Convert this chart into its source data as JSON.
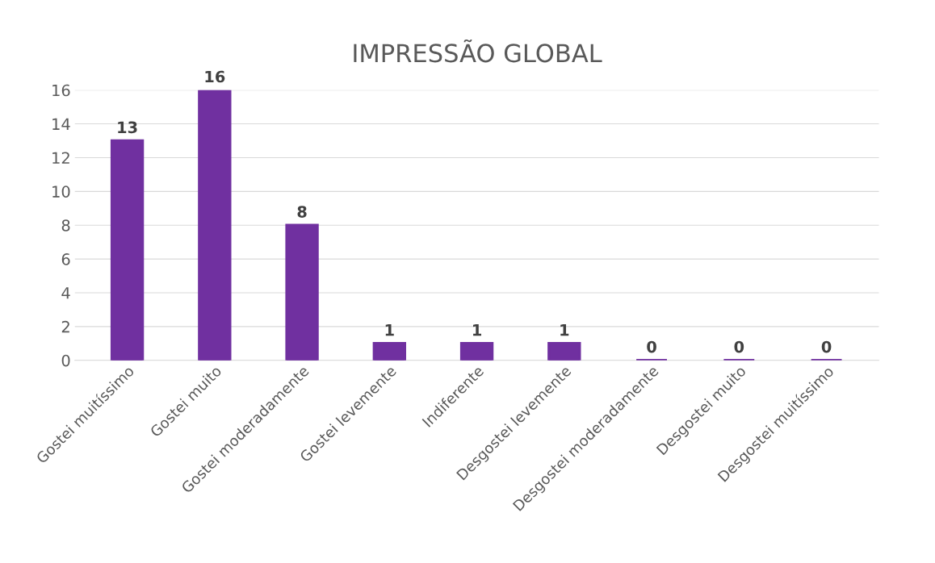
{
  "chart_data": {
    "type": "bar",
    "title": "IMPRESSÃO GLOBAL",
    "categories": [
      "Gostei muitíssimo",
      "Gostei muito",
      "Gostei moderadamente",
      "Gostei levemente",
      "Indiferente",
      "Desgostei levemente",
      "Desgostei moderadamente",
      "Desgostei muito",
      "Desgostei muitíssimo"
    ],
    "values": [
      13,
      16,
      8,
      1,
      1,
      1,
      0,
      0,
      0
    ],
    "color": "#7030a0",
    "ylim": [
      0,
      16
    ],
    "yticks": [
      0,
      2,
      4,
      6,
      8,
      10,
      12,
      14,
      16
    ],
    "grid": "y",
    "data_labels": true
  }
}
